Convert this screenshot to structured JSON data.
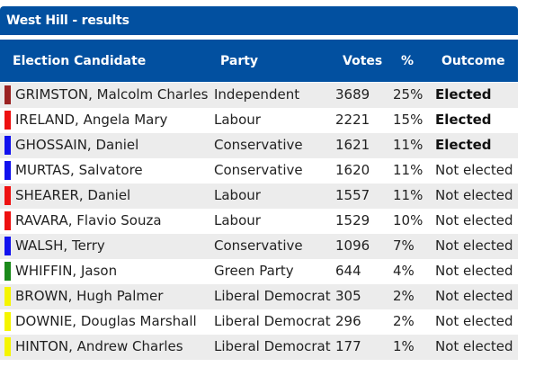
{
  "panel": {
    "title": "West Hill - results"
  },
  "columns": {
    "candidate": "Election Candidate",
    "party": "Party",
    "votes": "Votes",
    "percent": "%",
    "outcome": "Outcome"
  },
  "rows": [
    {
      "name": "GRIMSTON, Malcolm Charles",
      "party": "Independent",
      "votes": "3689",
      "percent": "25%",
      "outcome": "Elected",
      "color": "#9b2323",
      "elected": true
    },
    {
      "name": "IRELAND, Angela Mary",
      "party": "Labour",
      "votes": "2221",
      "percent": "15%",
      "outcome": "Elected",
      "color": "#ee1111",
      "elected": true
    },
    {
      "name": "GHOSSAIN, Daniel",
      "party": "Conservative",
      "votes": "1621",
      "percent": "11%",
      "outcome": "Elected",
      "color": "#1111ee",
      "elected": true
    },
    {
      "name": "MURTAS, Salvatore",
      "party": "Conservative",
      "votes": "1620",
      "percent": "11%",
      "outcome": "Not elected",
      "color": "#1111ee",
      "elected": false
    },
    {
      "name": "SHEARER, Daniel",
      "party": "Labour",
      "votes": "1557",
      "percent": "11%",
      "outcome": "Not elected",
      "color": "#ee1111",
      "elected": false
    },
    {
      "name": "RAVARA, Flavio Souza",
      "party": "Labour",
      "votes": "1529",
      "percent": "10%",
      "outcome": "Not elected",
      "color": "#ee1111",
      "elected": false
    },
    {
      "name": "WALSH, Terry",
      "party": "Conservative",
      "votes": "1096",
      "percent": "7%",
      "outcome": "Not elected",
      "color": "#1111ee",
      "elected": false
    },
    {
      "name": "WHIFFIN, Jason",
      "party": "Green Party",
      "votes": "644",
      "percent": "4%",
      "outcome": "Not elected",
      "color": "#1a8a1a",
      "elected": false
    },
    {
      "name": "BROWN, Hugh Palmer",
      "party": "Liberal Democrat",
      "votes": "305",
      "percent": "2%",
      "outcome": "Not elected",
      "color": "#f5f500",
      "elected": false
    },
    {
      "name": "DOWNIE, Douglas Marshall",
      "party": "Liberal Democrat",
      "votes": "296",
      "percent": "2%",
      "outcome": "Not elected",
      "color": "#f5f500",
      "elected": false
    },
    {
      "name": "HINTON, Andrew Charles",
      "party": "Liberal Democrat",
      "votes": "177",
      "percent": "1%",
      "outcome": "Not elected",
      "color": "#f5f500",
      "elected": false
    }
  ]
}
